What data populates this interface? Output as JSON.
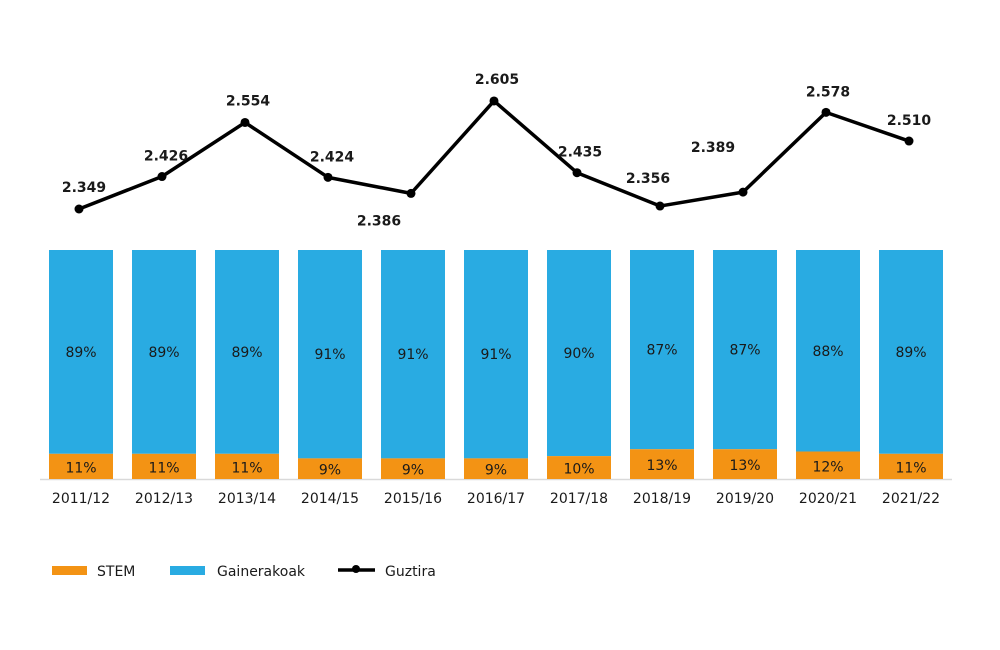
{
  "chart_data": {
    "type": "bar",
    "stacked": true,
    "percent": true,
    "categories": [
      "2011/12",
      "2012/13",
      "2013/14",
      "2014/15",
      "2015/16",
      "2016/17",
      "2017/18",
      "2018/19",
      "2019/20",
      "2020/21",
      "2021/22"
    ],
    "series": [
      {
        "name": "STEM",
        "kind": "bar",
        "color": "#F39314",
        "values": [
          11,
          11,
          11,
          9,
          9,
          9,
          10,
          13,
          13,
          12,
          11
        ],
        "labels": [
          "11%",
          "11%",
          "11%",
          "9%",
          "9%",
          "9%",
          "10%",
          "13%",
          "13%",
          "12%",
          "11%"
        ]
      },
      {
        "name": "Gainerakoak",
        "kind": "bar",
        "color": "#29ABE2",
        "values": [
          89,
          89,
          89,
          91,
          91,
          91,
          90,
          87,
          87,
          88,
          89
        ],
        "labels": [
          "89%",
          "89%",
          "89%",
          "91%",
          "91%",
          "91%",
          "90%",
          "87%",
          "87%",
          "88%",
          "89%"
        ]
      },
      {
        "name": "Guztira",
        "kind": "line",
        "color": "#000000",
        "values": [
          2349,
          2426,
          2554,
          2424,
          2386,
          2605,
          2435,
          2356,
          2389,
          2578,
          2510
        ],
        "labels": [
          "2.349",
          "2.426",
          "2.554",
          "2.424",
          "2.386",
          "2.605",
          "2.435",
          "2.356",
          "2.389",
          "2.578",
          "2.510"
        ]
      }
    ],
    "legend": [
      "STEM",
      "Gainerakoak",
      "Guztira"
    ],
    "legend_position": "bottom-left",
    "grid": false
  }
}
